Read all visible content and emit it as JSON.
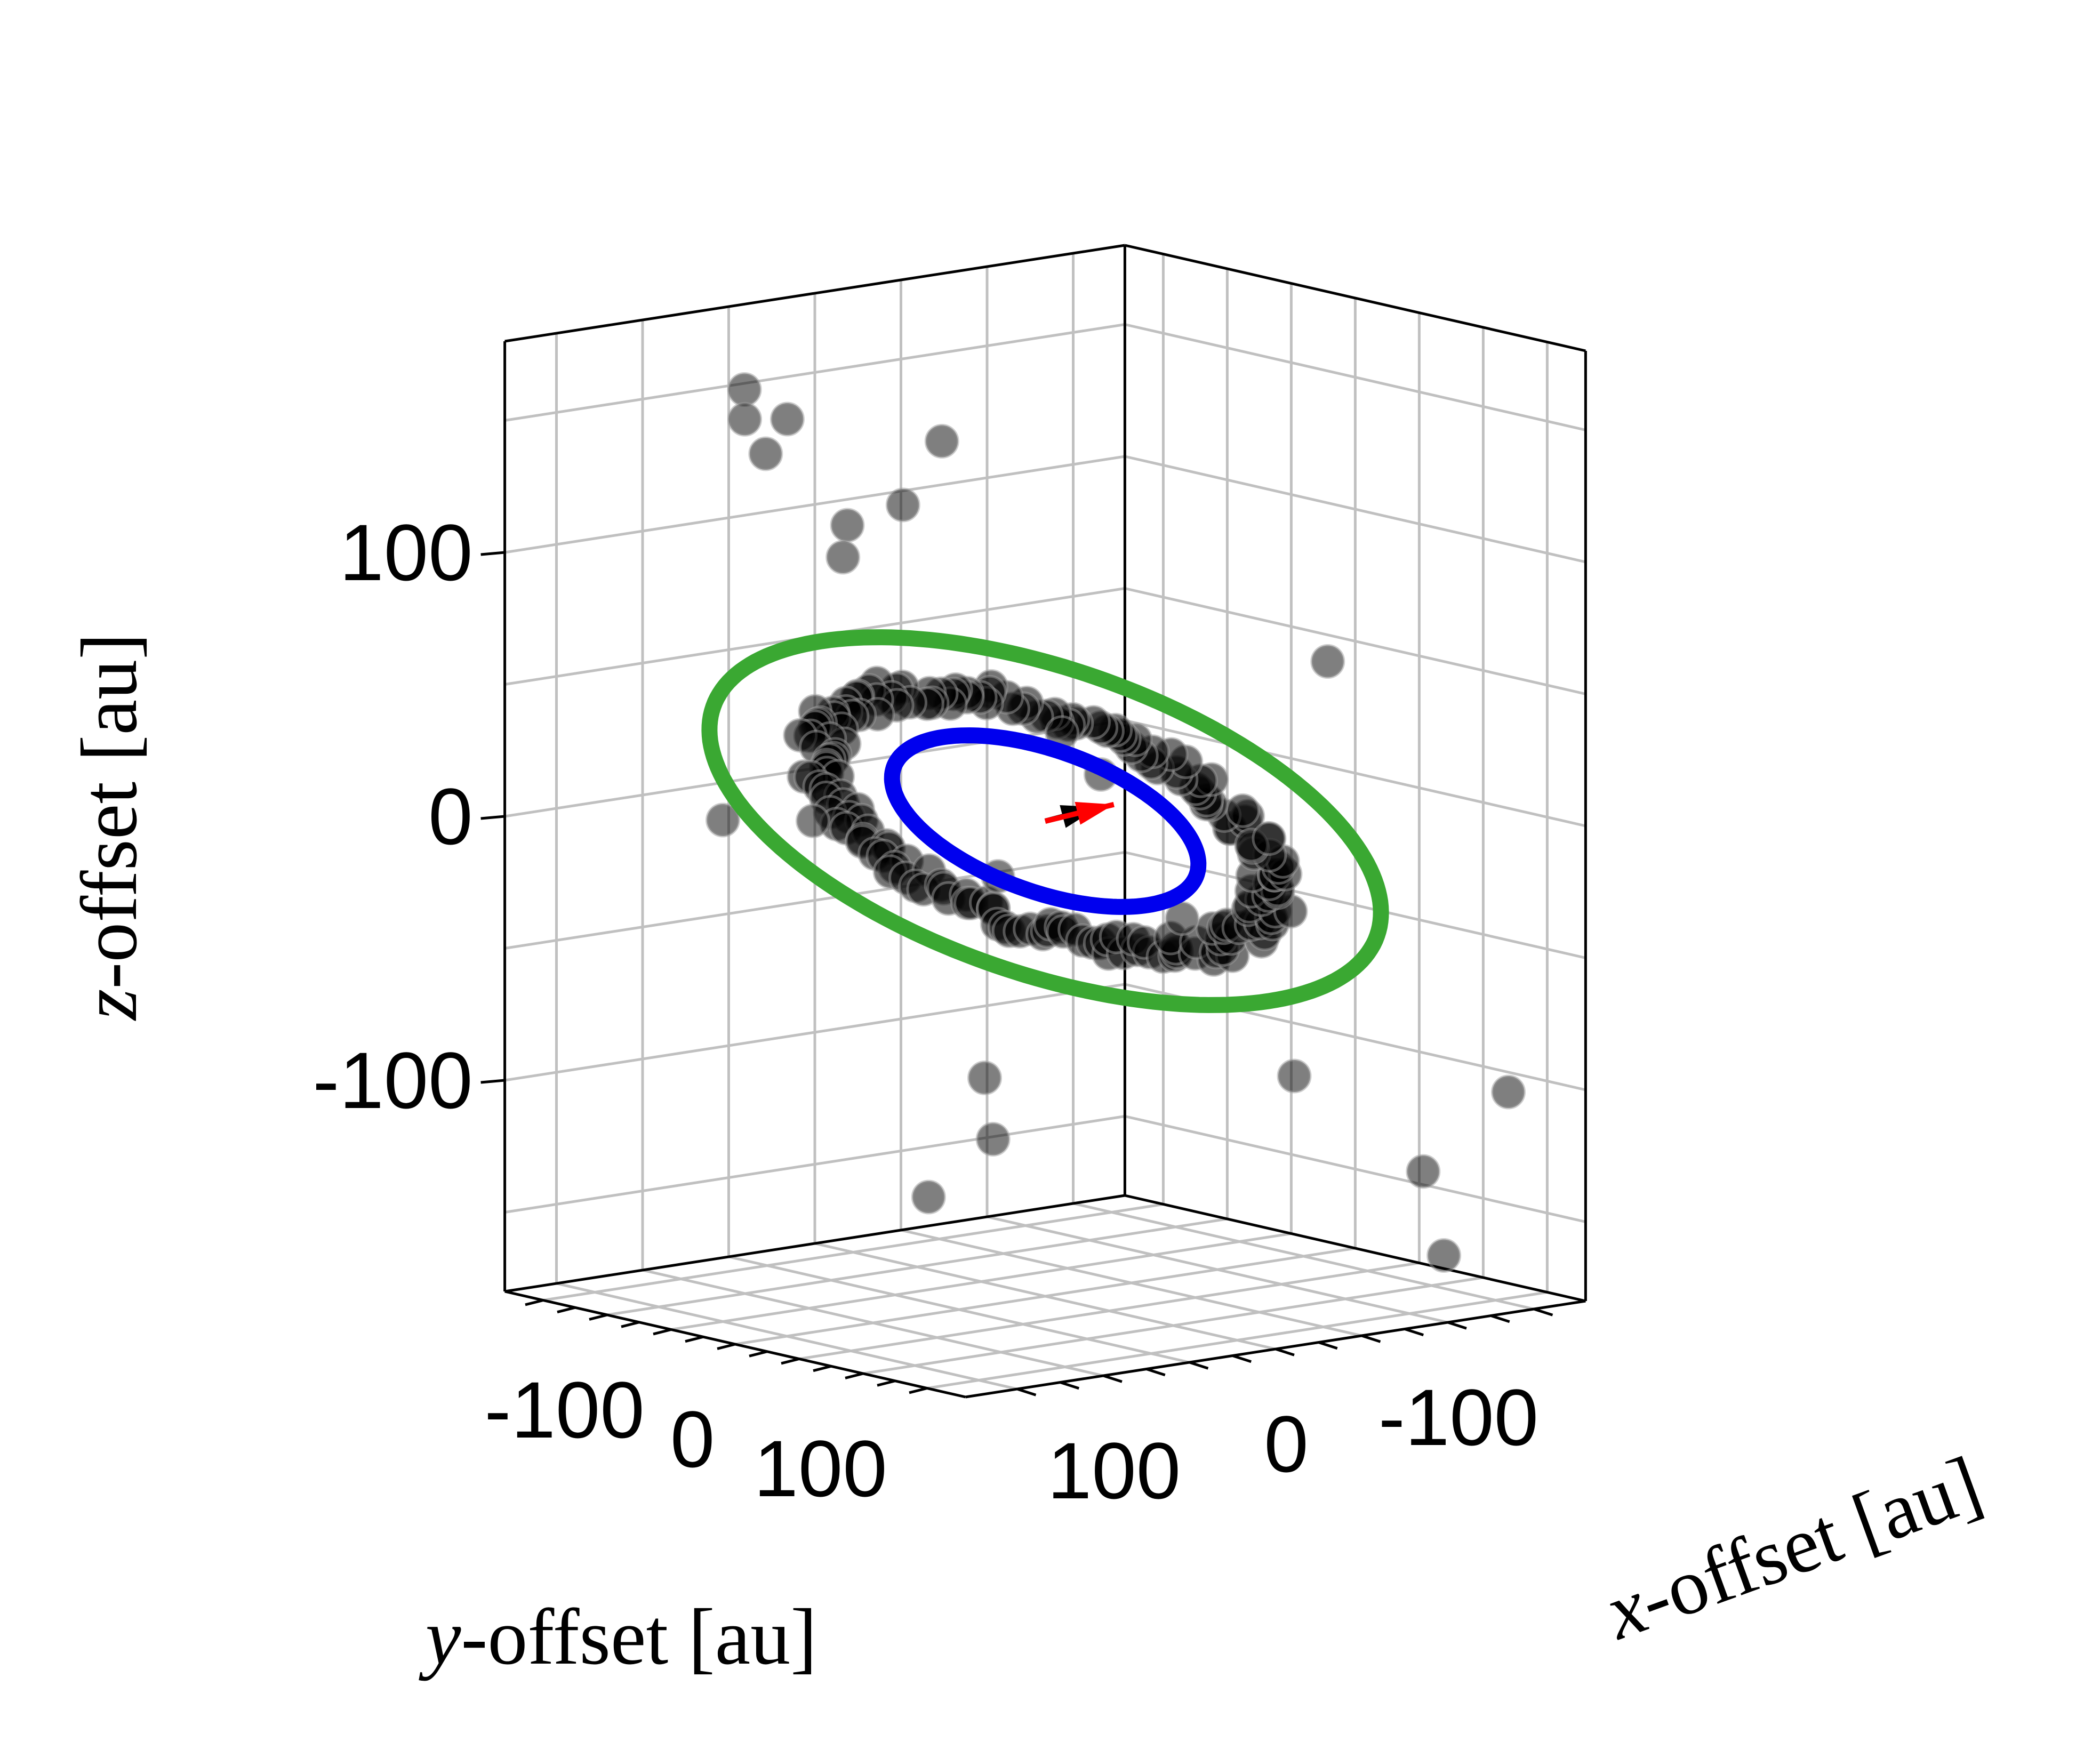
{
  "chart_data": {
    "type": "scatter",
    "projection": "3d",
    "axes": {
      "x": {
        "label_var": "x",
        "label_rest": "-offset [au]",
        "ticks": [
          -100,
          0,
          100
        ],
        "tick_labels": [
          "-100",
          "0",
          "100"
        ],
        "lim": [
          -180,
          180
        ]
      },
      "y": {
        "label_var": "y",
        "label_rest": "-offset [au]",
        "ticks": [
          100,
          0,
          -100
        ],
        "tick_labels": [
          "100",
          "0",
          "-100"
        ],
        "lim": [
          -180,
          180
        ]
      },
      "z": {
        "label_var": "z",
        "label_rest": "-offset [au]",
        "ticks": [
          100,
          0,
          -100
        ],
        "tick_labels": [
          "100",
          "0",
          "-100"
        ],
        "lim": [
          -180,
          180
        ]
      }
    },
    "grid": true,
    "legend": "none",
    "colors": {
      "points": "#000000",
      "inner_ring": "#0000ee",
      "outer_ring": "#3aa832",
      "vector_red": "#ff0000",
      "vector_black": "#000000",
      "box": "#000000",
      "grid": "#c0c0c0"
    },
    "series": [
      {
        "kind": "ellipse",
        "color_key": "inner_ring",
        "center": [
          0,
          0,
          0
        ],
        "semi_major": 75,
        "semi_minor": 70
      },
      {
        "kind": "ellipse",
        "color_key": "outer_ring",
        "center": [
          0,
          0,
          0
        ],
        "semi_major": 165,
        "semi_minor": 150
      },
      {
        "kind": "vectors",
        "items": [
          {
            "color_key": "vector_black",
            "from": [
              0,
              0,
              0
            ],
            "to": [
              15,
              -20,
              5
            ]
          },
          {
            "color_key": "vector_red",
            "from": [
              0,
              0,
              0
            ],
            "to": [
              20,
              -25,
              6
            ]
          }
        ]
      },
      {
        "kind": "points",
        "color_key": "points",
        "ring": {
          "n": 190,
          "radius_min": 100,
          "radius_max": 122
        },
        "scattered": [
          [
            -60,
            130,
            170
          ],
          [
            -40,
            120,
            160
          ],
          [
            -80,
            115,
            155
          ],
          [
            -30,
            140,
            150
          ],
          [
            -20,
            100,
            120
          ],
          [
            -10,
            110,
            110
          ],
          [
            10,
            90,
            130
          ],
          [
            0,
            60,
            150
          ],
          [
            -50,
            150,
            10
          ],
          [
            -20,
            120,
            10
          ],
          [
            40,
            20,
            40
          ],
          [
            30,
            -10,
            20
          ],
          [
            -10,
            20,
            -20
          ],
          [
            80,
            -20,
            -30
          ],
          [
            40,
            60,
            -110
          ],
          [
            30,
            90,
            -130
          ],
          [
            140,
            -60,
            70
          ],
          [
            160,
            -150,
            -100
          ],
          [
            150,
            -120,
            -160
          ],
          [
            80,
            -160,
            -140
          ],
          [
            60,
            -100,
            -100
          ],
          [
            20,
            50,
            -90
          ]
        ]
      }
    ]
  }
}
